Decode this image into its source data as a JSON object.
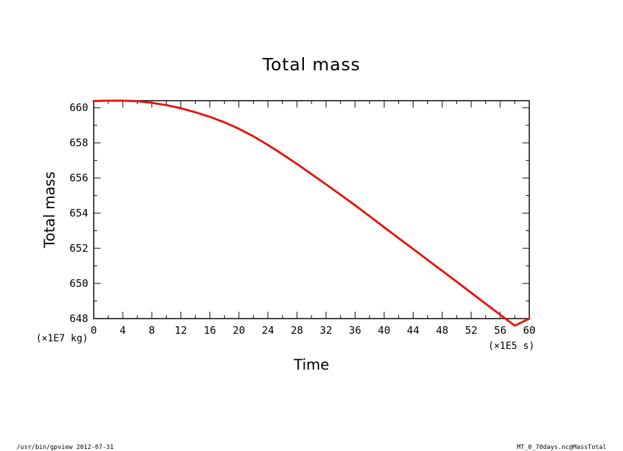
{
  "chart_data": {
    "type": "line",
    "title": "Total mass",
    "xlabel": "Time",
    "ylabel": "Total mass",
    "x_unit": "(×1E5 s)",
    "y_unit": "(×1E7 kg)",
    "xlim": [
      0,
      60
    ],
    "ylim": [
      648,
      660.4
    ],
    "x_ticks": [
      0,
      4,
      8,
      12,
      16,
      20,
      24,
      28,
      32,
      36,
      40,
      44,
      48,
      52,
      56,
      60
    ],
    "y_ticks": [
      648,
      650,
      652,
      654,
      656,
      658,
      660
    ],
    "grid": false,
    "line_color": "#e8120c",
    "series": [
      {
        "x": [
          0,
          2,
          4,
          6,
          8,
          10,
          12,
          14,
          16,
          18,
          20,
          22,
          24,
          26,
          28,
          30,
          32,
          34,
          36,
          38,
          40,
          42,
          44,
          46,
          48,
          50,
          52,
          54,
          56,
          58,
          60
        ],
        "values": [
          660.38,
          660.4,
          660.4,
          660.37,
          660.28,
          660.15,
          659.97,
          659.74,
          659.48,
          659.17,
          658.8,
          658.37,
          657.88,
          657.35,
          656.8,
          656.22,
          655.64,
          655.05,
          654.45,
          653.83,
          653.2,
          652.58,
          651.96,
          651.34,
          650.72,
          650.1,
          649.47,
          648.84,
          648.22,
          647.6,
          648.0
        ]
      }
    ]
  },
  "footer": {
    "left": "/usr/bin/gpview   2012-07-31",
    "right": "MT_0_70days.nc@MassTotal"
  }
}
